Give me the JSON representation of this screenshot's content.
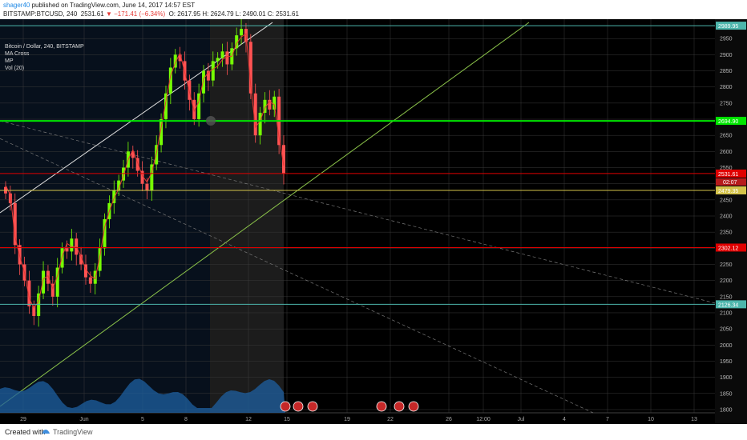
{
  "header": {
    "author": "shager40",
    "published": "published on TradingView.com, June 14, 2017 14:57 EST",
    "symbol": "BITSTAMP:BTCUSD, 240",
    "price": "2531.61",
    "change": "▼ −171.41 (−6.34%)",
    "ohlc": "O: 2617.95  H: 2624.79  L: 2490.01  C: 2531.61"
  },
  "legend": [
    "Bitcoin / Dollar, 240, BITSTAMP",
    "MA Cross",
    "MP",
    "Vol (20)"
  ],
  "footer": {
    "created": "Created with",
    "brand": "TradingView"
  },
  "colors": {
    "bg": "#000000",
    "up": "#76ff03",
    "down": "#ff5252",
    "grid": "#3a3a3a",
    "green_line": "#00e600",
    "red_line": "#e00000",
    "teal_line": "#4db6ac",
    "yellow_line": "#d4c34a",
    "trend_white": "#dddddd",
    "trend_green": "#8bc34a"
  },
  "chart_data": {
    "type": "candlestick",
    "x_tick_labels": [
      "29",
      "Jun",
      "5",
      "8",
      "12",
      "15",
      "19",
      "22",
      "26",
      "12:00",
      "Jul",
      "4",
      "7",
      "10",
      "13"
    ],
    "y_ticks": [
      1800,
      1850,
      1900,
      1950,
      2000,
      2050,
      2100,
      2150,
      2200,
      2250,
      2300,
      2350,
      2400,
      2450,
      2500,
      2550,
      2600,
      2650,
      2700,
      2750,
      2800,
      2850,
      2900,
      2950
    ],
    "ylim": [
      1790,
      3010
    ],
    "horizontal_levels": [
      {
        "value": 2989.95,
        "label": "2989.95",
        "color": "#4db6ac"
      },
      {
        "value": 2694.9,
        "label": "2694.90",
        "color": "#00e600"
      },
      {
        "value": 2531.61,
        "label": "2531.61",
        "color": "#e00000"
      },
      {
        "value": 2479.35,
        "label": "2479.35",
        "color": "#d4c34a"
      },
      {
        "value": 2302.12,
        "label": "2302.12",
        "color": "#e00000"
      },
      {
        "value": 2126.34,
        "label": "2126.34",
        "color": "#4db6ac"
      }
    ],
    "countdown": "02:07",
    "close_series": [
      2470,
      2440,
      2310,
      2250,
      2200,
      2120,
      2090,
      2160,
      2230,
      2190,
      2150,
      2240,
      2300,
      2290,
      2330,
      2280,
      2250,
      2210,
      2190,
      2230,
      2300,
      2390,
      2440,
      2480,
      2510,
      2550,
      2600,
      2580,
      2540,
      2500,
      2480,
      2560,
      2620,
      2700,
      2780,
      2860,
      2900,
      2880,
      2820,
      2760,
      2700,
      2780,
      2850,
      2820,
      2880,
      2890,
      2910,
      2870,
      2920,
      2960,
      2980,
      2940,
      2780,
      2650,
      2720,
      2760,
      2730,
      2770,
      2620,
      2531
    ]
  }
}
